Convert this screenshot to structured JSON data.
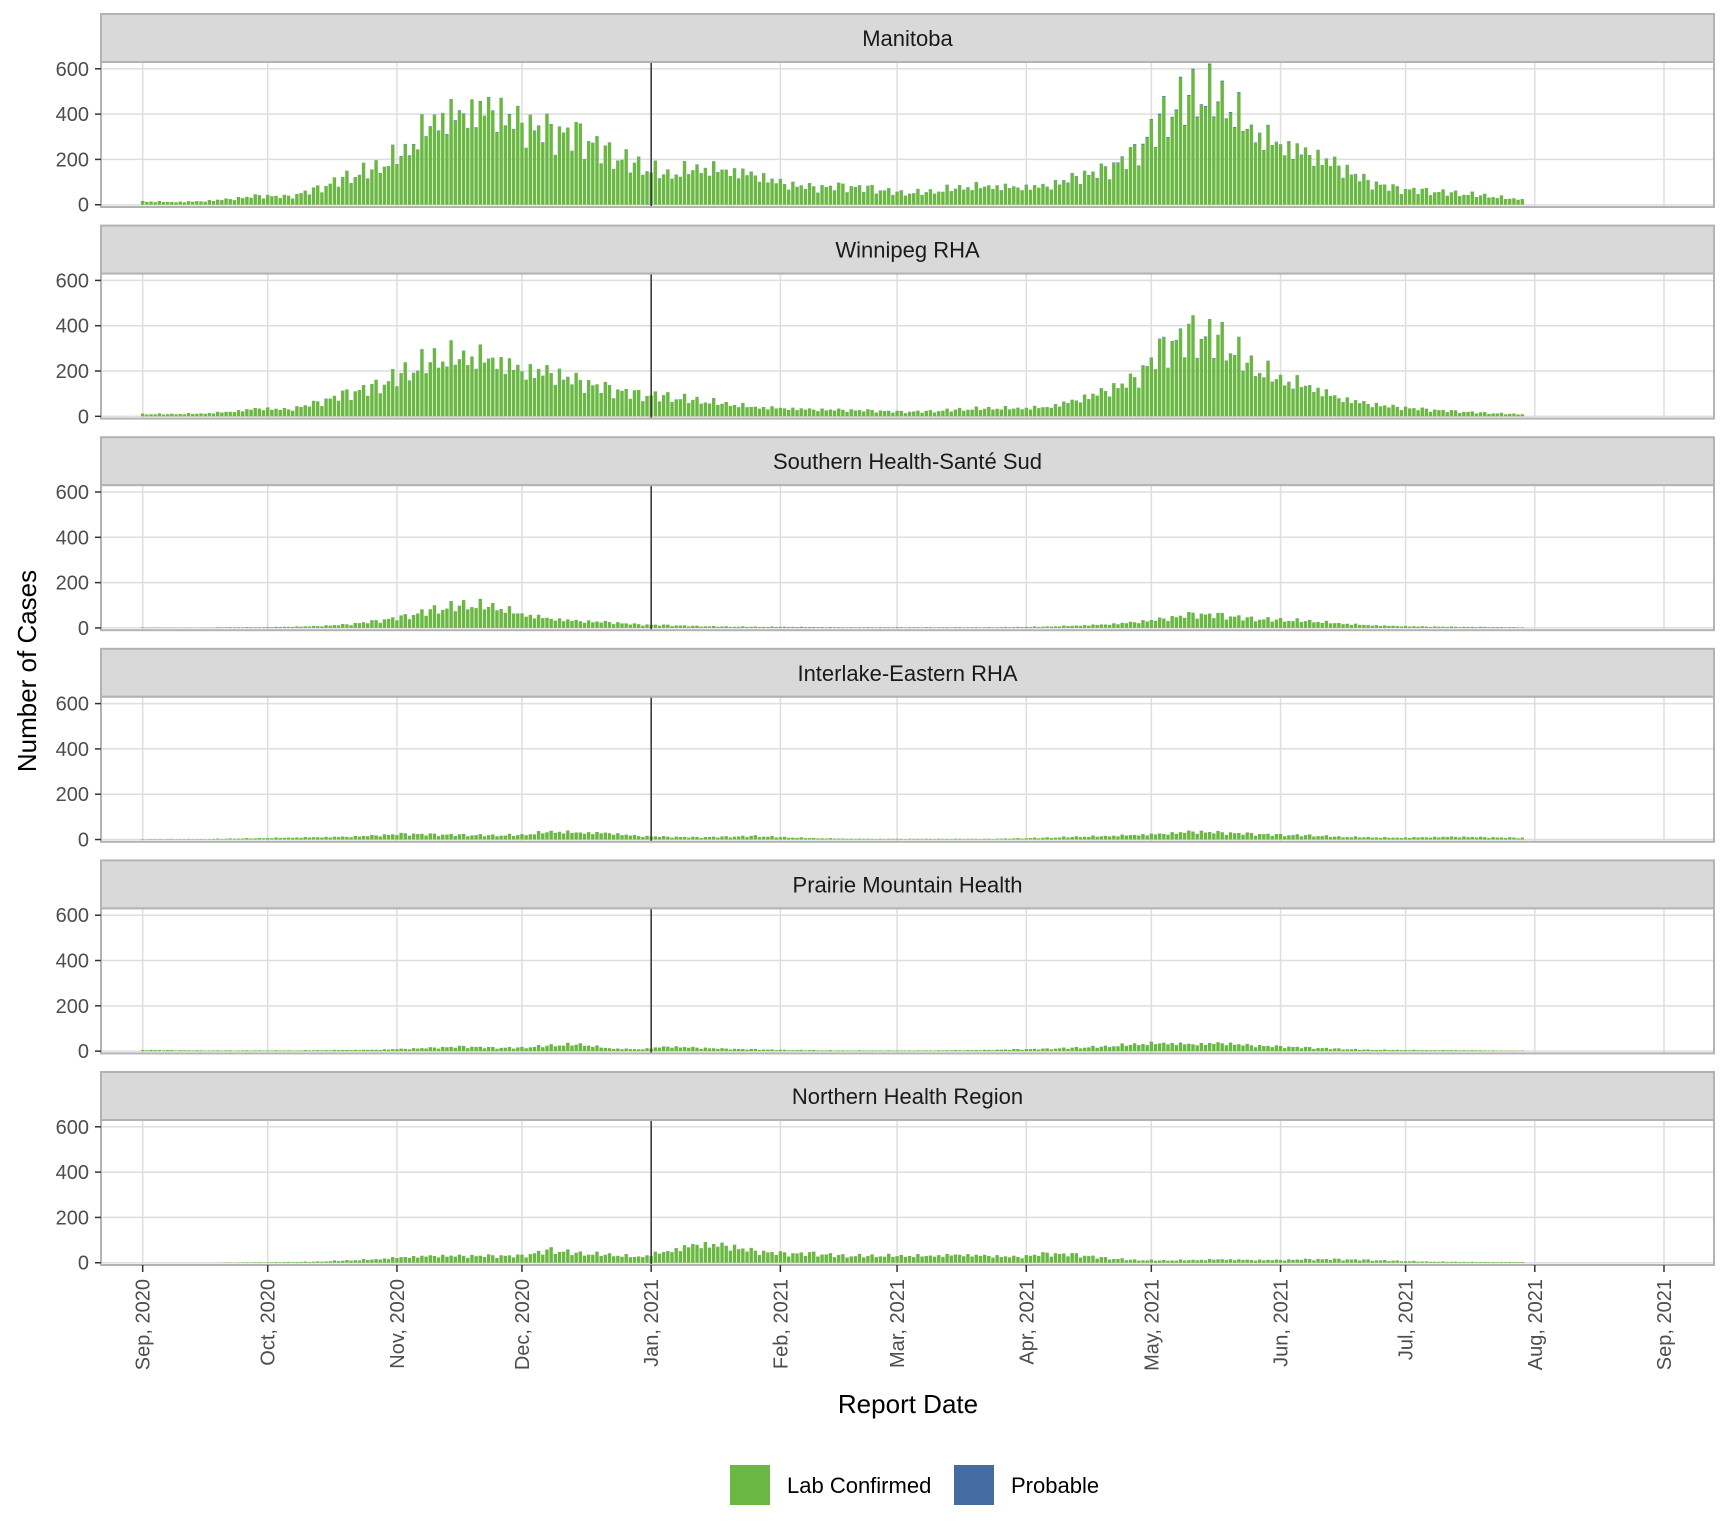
{
  "chart_data": {
    "type": "bar",
    "stacked": true,
    "xlabel": "Report Date",
    "ylabel": "Number of Cases",
    "x_range": [
      "2020-08-22",
      "2021-09-13"
    ],
    "ylim": [
      -10,
      630
    ],
    "y_ticks": [
      0,
      200,
      400,
      600
    ],
    "grid": true,
    "legend_position": "bottom",
    "vline_date": "2021-01-01",
    "x_ticks": [
      {
        "date": "2020-09-01",
        "label": "Sep, 2020"
      },
      {
        "date": "2020-10-01",
        "label": "Oct, 2020"
      },
      {
        "date": "2020-11-01",
        "label": "Nov, 2020"
      },
      {
        "date": "2020-12-01",
        "label": "Dec, 2020"
      },
      {
        "date": "2021-01-01",
        "label": "Jan, 2021"
      },
      {
        "date": "2021-02-01",
        "label": "Feb, 2021"
      },
      {
        "date": "2021-03-01",
        "label": "Mar, 2021"
      },
      {
        "date": "2021-04-01",
        "label": "Apr, 2021"
      },
      {
        "date": "2021-05-01",
        "label": "May, 2021"
      },
      {
        "date": "2021-06-01",
        "label": "Jun, 2021"
      },
      {
        "date": "2021-07-01",
        "label": "Jul, 2021"
      },
      {
        "date": "2021-08-01",
        "label": "Aug, 2021"
      },
      {
        "date": "2021-09-01",
        "label": "Sep, 2021"
      }
    ],
    "series": [
      {
        "name": "Lab Confirmed",
        "color": "#6ab843"
      },
      {
        "name": "Probable",
        "color": "#446ca3"
      }
    ],
    "panels": [
      {
        "name": "Manitoba",
        "weekly_dates": [
          "2020-09-01",
          "2020-09-08",
          "2020-09-15",
          "2020-09-22",
          "2020-09-29",
          "2020-10-06",
          "2020-10-13",
          "2020-10-20",
          "2020-10-27",
          "2020-11-03",
          "2020-11-10",
          "2020-11-17",
          "2020-11-24",
          "2020-12-01",
          "2020-12-08",
          "2020-12-15",
          "2020-12-22",
          "2020-12-29",
          "2021-01-05",
          "2021-01-12",
          "2021-01-19",
          "2021-01-26",
          "2021-02-02",
          "2021-02-09",
          "2021-02-16",
          "2021-02-23",
          "2021-03-02",
          "2021-03-09",
          "2021-03-16",
          "2021-03-23",
          "2021-03-30",
          "2021-04-06",
          "2021-04-13",
          "2021-04-20",
          "2021-04-27",
          "2021-05-04",
          "2021-05-11",
          "2021-05-18",
          "2021-05-25",
          "2021-06-01",
          "2021-06-08",
          "2021-06-15",
          "2021-06-22",
          "2021-06-29",
          "2021-07-06",
          "2021-07-13",
          "2021-07-20",
          "2021-07-27"
        ],
        "lab_confirmed": [
          15,
          12,
          15,
          25,
          40,
          35,
          70,
          120,
          160,
          230,
          370,
          400,
          420,
          350,
          320,
          300,
          220,
          170,
          130,
          160,
          150,
          130,
          90,
          75,
          80,
          70,
          50,
          55,
          75,
          80,
          75,
          80,
          120,
          150,
          220,
          380,
          480,
          460,
          320,
          260,
          220,
          170,
          100,
          70,
          60,
          50,
          40,
          25
        ],
        "probable": [
          0,
          0,
          0,
          0,
          0,
          0,
          0,
          0,
          0,
          2,
          2,
          2,
          2,
          2,
          2,
          1,
          1,
          1,
          1,
          1,
          1,
          1,
          1,
          1,
          1,
          1,
          1,
          1,
          1,
          1,
          1,
          1,
          2,
          2,
          3,
          4,
          4,
          4,
          3,
          2,
          2,
          1,
          1,
          0,
          0,
          0,
          0,
          0
        ]
      },
      {
        "name": "Winnipeg RHA",
        "weekly_dates": [
          "2020-09-01",
          "2020-09-08",
          "2020-09-15",
          "2020-09-22",
          "2020-09-29",
          "2020-10-06",
          "2020-10-13",
          "2020-10-20",
          "2020-10-27",
          "2020-11-03",
          "2020-11-10",
          "2020-11-17",
          "2020-11-24",
          "2020-12-01",
          "2020-12-08",
          "2020-12-15",
          "2020-12-22",
          "2020-12-29",
          "2021-01-05",
          "2021-01-12",
          "2021-01-19",
          "2021-01-26",
          "2021-02-02",
          "2021-02-09",
          "2021-02-16",
          "2021-02-23",
          "2021-03-02",
          "2021-03-09",
          "2021-03-16",
          "2021-03-23",
          "2021-03-30",
          "2021-04-06",
          "2021-04-13",
          "2021-04-20",
          "2021-04-27",
          "2021-05-04",
          "2021-05-11",
          "2021-05-18",
          "2021-05-25",
          "2021-06-01",
          "2021-06-08",
          "2021-06-15",
          "2021-06-22",
          "2021-06-29",
          "2021-07-06",
          "2021-07-13",
          "2021-07-20",
          "2021-07-27"
        ],
        "lab_confirmed": [
          10,
          10,
          12,
          20,
          35,
          30,
          60,
          100,
          130,
          190,
          250,
          260,
          250,
          200,
          190,
          150,
          120,
          95,
          85,
          70,
          55,
          40,
          35,
          30,
          28,
          25,
          20,
          22,
          30,
          35,
          35,
          40,
          70,
          110,
          160,
          300,
          360,
          330,
          220,
          160,
          130,
          80,
          55,
          40,
          30,
          22,
          15,
          10
        ],
        "probable": [
          0,
          0,
          0,
          0,
          0,
          0,
          0,
          0,
          0,
          1,
          1,
          1,
          1,
          1,
          1,
          1,
          0,
          0,
          0,
          0,
          0,
          0,
          0,
          0,
          0,
          0,
          0,
          0,
          0,
          0,
          0,
          0,
          1,
          1,
          1,
          2,
          2,
          2,
          1,
          1,
          1,
          0,
          0,
          0,
          0,
          0,
          0,
          0
        ]
      },
      {
        "name": "Southern Health-Santé Sud",
        "weekly_dates": [
          "2020-09-01",
          "2020-09-08",
          "2020-09-15",
          "2020-09-22",
          "2020-09-29",
          "2020-10-06",
          "2020-10-13",
          "2020-10-20",
          "2020-10-27",
          "2020-11-03",
          "2020-11-10",
          "2020-11-17",
          "2020-11-24",
          "2020-12-01",
          "2020-12-08",
          "2020-12-15",
          "2020-12-22",
          "2020-12-29",
          "2021-01-05",
          "2021-01-12",
          "2021-01-19",
          "2021-01-26",
          "2021-02-02",
          "2021-02-09",
          "2021-02-16",
          "2021-02-23",
          "2021-03-02",
          "2021-03-09",
          "2021-03-16",
          "2021-03-23",
          "2021-03-30",
          "2021-04-06",
          "2021-04-13",
          "2021-04-20",
          "2021-04-27",
          "2021-05-04",
          "2021-05-11",
          "2021-05-18",
          "2021-05-25",
          "2021-06-01",
          "2021-06-08",
          "2021-06-15",
          "2021-06-22",
          "2021-06-29",
          "2021-07-06",
          "2021-07-13",
          "2021-07-20",
          "2021-07-27"
        ],
        "lab_confirmed": [
          2,
          1,
          1,
          3,
          3,
          5,
          8,
          15,
          30,
          50,
          80,
          100,
          95,
          60,
          40,
          30,
          25,
          15,
          12,
          8,
          6,
          5,
          5,
          4,
          3,
          3,
          3,
          3,
          3,
          3,
          4,
          6,
          10,
          15,
          25,
          40,
          60,
          55,
          40,
          35,
          30,
          20,
          12,
          8,
          6,
          5,
          4,
          3
        ],
        "probable": [
          0,
          0,
          0,
          0,
          0,
          0,
          0,
          0,
          0,
          0,
          0,
          0,
          0,
          0,
          0,
          0,
          0,
          0,
          0,
          0,
          0,
          0,
          0,
          0,
          0,
          0,
          0,
          0,
          0,
          0,
          0,
          0,
          0,
          0,
          0,
          0,
          0,
          0,
          0,
          0,
          0,
          0,
          0,
          0,
          0,
          0,
          0,
          0
        ]
      },
      {
        "name": "Interlake-Eastern RHA",
        "weekly_dates": [
          "2020-09-01",
          "2020-09-08",
          "2020-09-15",
          "2020-09-22",
          "2020-09-29",
          "2020-10-06",
          "2020-10-13",
          "2020-10-20",
          "2020-10-27",
          "2020-11-03",
          "2020-11-10",
          "2020-11-17",
          "2020-11-24",
          "2020-12-01",
          "2020-12-08",
          "2020-12-15",
          "2020-12-22",
          "2020-12-29",
          "2021-01-05",
          "2021-01-12",
          "2021-01-19",
          "2021-01-26",
          "2021-02-02",
          "2021-02-09",
          "2021-02-16",
          "2021-02-23",
          "2021-03-02",
          "2021-03-09",
          "2021-03-16",
          "2021-03-23",
          "2021-03-30",
          "2021-04-06",
          "2021-04-13",
          "2021-04-20",
          "2021-04-27",
          "2021-05-04",
          "2021-05-11",
          "2021-05-18",
          "2021-05-25",
          "2021-06-01",
          "2021-06-08",
          "2021-06-15",
          "2021-06-22",
          "2021-06-29",
          "2021-07-06",
          "2021-07-13",
          "2021-07-20",
          "2021-07-27"
        ],
        "lab_confirmed": [
          2,
          2,
          2,
          4,
          6,
          8,
          10,
          12,
          18,
          25,
          22,
          20,
          18,
          20,
          35,
          30,
          28,
          15,
          12,
          10,
          12,
          15,
          10,
          6,
          4,
          3,
          3,
          3,
          3,
          3,
          5,
          8,
          12,
          15,
          20,
          25,
          35,
          30,
          25,
          20,
          18,
          12,
          10,
          8,
          10,
          12,
          10,
          8
        ],
        "probable": [
          0,
          0,
          0,
          0,
          0,
          0,
          0,
          0,
          0,
          0,
          0,
          0,
          0,
          0,
          0,
          0,
          0,
          0,
          0,
          0,
          0,
          0,
          0,
          0,
          0,
          0,
          0,
          0,
          0,
          0,
          0,
          0,
          0,
          0,
          0,
          0,
          0,
          0,
          0,
          0,
          0,
          0,
          0,
          0,
          0,
          0,
          0,
          0
        ]
      },
      {
        "name": "Prairie Mountain Health",
        "weekly_dates": [
          "2020-09-01",
          "2020-09-08",
          "2020-09-15",
          "2020-09-22",
          "2020-09-29",
          "2020-10-06",
          "2020-10-13",
          "2020-10-20",
          "2020-10-27",
          "2020-11-03",
          "2020-11-10",
          "2020-11-17",
          "2020-11-24",
          "2020-12-01",
          "2020-12-08",
          "2020-12-15",
          "2020-12-22",
          "2020-12-29",
          "2021-01-05",
          "2021-01-12",
          "2021-01-19",
          "2021-01-26",
          "2021-02-02",
          "2021-02-09",
          "2021-02-16",
          "2021-02-23",
          "2021-03-02",
          "2021-03-09",
          "2021-03-16",
          "2021-03-23",
          "2021-03-30",
          "2021-04-06",
          "2021-04-13",
          "2021-04-20",
          "2021-04-27",
          "2021-05-04",
          "2021-05-11",
          "2021-05-18",
          "2021-05-25",
          "2021-06-01",
          "2021-06-08",
          "2021-06-15",
          "2021-06-22",
          "2021-06-29",
          "2021-07-06",
          "2021-07-13",
          "2021-07-20",
          "2021-07-27"
        ],
        "lab_confirmed": [
          5,
          4,
          3,
          3,
          3,
          3,
          4,
          5,
          6,
          10,
          15,
          20,
          15,
          15,
          25,
          30,
          12,
          8,
          20,
          15,
          10,
          8,
          5,
          4,
          3,
          3,
          3,
          3,
          4,
          5,
          8,
          10,
          15,
          20,
          30,
          35,
          30,
          35,
          25,
          20,
          15,
          10,
          6,
          5,
          4,
          4,
          3,
          2
        ],
        "probable": [
          0,
          0,
          0,
          0,
          0,
          0,
          0,
          0,
          0,
          0,
          0,
          0,
          0,
          0,
          0,
          0,
          0,
          0,
          0,
          0,
          0,
          0,
          0,
          0,
          0,
          0,
          0,
          0,
          0,
          0,
          0,
          0,
          0,
          0,
          0,
          0,
          0,
          0,
          0,
          0,
          0,
          0,
          0,
          0,
          0,
          0,
          0,
          0
        ]
      },
      {
        "name": "Northern Health Region",
        "weekly_dates": [
          "2020-09-01",
          "2020-09-08",
          "2020-09-15",
          "2020-09-22",
          "2020-09-29",
          "2020-10-06",
          "2020-10-13",
          "2020-10-20",
          "2020-10-27",
          "2020-11-03",
          "2020-11-10",
          "2020-11-17",
          "2020-11-24",
          "2020-12-01",
          "2020-12-08",
          "2020-12-15",
          "2020-12-22",
          "2020-12-29",
          "2021-01-05",
          "2021-01-12",
          "2021-01-19",
          "2021-01-26",
          "2021-02-02",
          "2021-02-09",
          "2021-02-16",
          "2021-02-23",
          "2021-03-02",
          "2021-03-09",
          "2021-03-16",
          "2021-03-23",
          "2021-03-30",
          "2021-04-06",
          "2021-04-13",
          "2021-04-20",
          "2021-04-27",
          "2021-05-04",
          "2021-05-11",
          "2021-05-18",
          "2021-05-25",
          "2021-06-01",
          "2021-06-08",
          "2021-06-15",
          "2021-06-22",
          "2021-06-29",
          "2021-07-06",
          "2021-07-13",
          "2021-07-20",
          "2021-07-27"
        ],
        "lab_confirmed": [
          0,
          0,
          0,
          1,
          2,
          3,
          5,
          10,
          15,
          25,
          30,
          30,
          30,
          30,
          55,
          40,
          35,
          25,
          50,
          80,
          75,
          50,
          40,
          40,
          30,
          30,
          30,
          30,
          35,
          30,
          25,
          40,
          35,
          20,
          12,
          10,
          12,
          15,
          12,
          12,
          15,
          15,
          12,
          8,
          5,
          4,
          3,
          3
        ],
        "probable": [
          0,
          0,
          0,
          0,
          0,
          0,
          0,
          0,
          0,
          0,
          0,
          0,
          0,
          0,
          0,
          0,
          0,
          0,
          0,
          0,
          0,
          0,
          0,
          0,
          0,
          0,
          0,
          0,
          0,
          0,
          0,
          0,
          0,
          0,
          0,
          0,
          0,
          0,
          0,
          0,
          0,
          0,
          0,
          0,
          0,
          0,
          0,
          0
        ]
      }
    ]
  }
}
